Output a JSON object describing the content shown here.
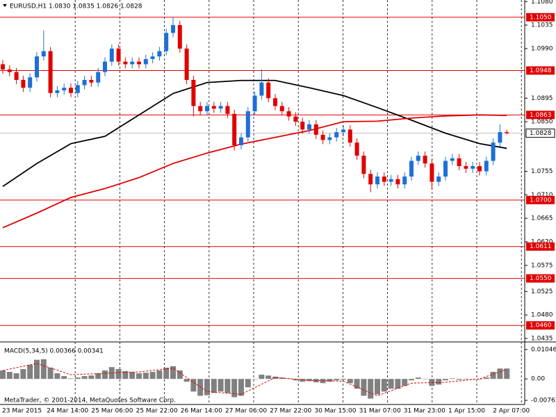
{
  "chart_data": {
    "type": "candlestick",
    "title": "EURUSD,H1  1.0830 1.0835 1.0826 1.0828",
    "bull_color": "#1e6fd6",
    "bear_color": "#e00000",
    "candles": {
      "open": [
        1.096,
        1.095,
        1.0945,
        1.093,
        1.0915,
        1.0935,
        1.0975,
        1.0985,
        1.0905,
        1.091,
        1.0915,
        1.0905,
        1.092,
        1.093,
        1.0925,
        1.0945,
        1.0965,
        1.099,
        1.0965,
        1.096,
        1.0965,
        1.096,
        1.097,
        1.0975,
        1.0985,
        1.102,
        1.1035,
        1.099,
        1.093,
        1.088,
        1.087,
        1.088,
        1.0875,
        1.088,
        1.0865,
        1.0805,
        1.082,
        1.087,
        1.09,
        1.0925,
        1.0895,
        1.088,
        1.087,
        1.086,
        1.085,
        1.0835,
        1.0845,
        1.0825,
        1.0815,
        1.082,
        1.083,
        1.0835,
        1.081,
        1.0785,
        1.075,
        1.073,
        1.0745,
        1.0735,
        1.074,
        1.073,
        1.0745,
        1.0775,
        1.0785,
        1.077,
        1.0735,
        1.0745,
        1.0775,
        1.078,
        1.0765,
        1.076,
        1.0765,
        1.0755,
        1.0775,
        1.081,
        1.083
      ],
      "high": [
        1.0968,
        1.0958,
        1.0953,
        1.0938,
        1.0943,
        1.0983,
        1.1025,
        1.0993,
        1.0918,
        1.0923,
        1.0923,
        1.0928,
        1.0938,
        1.0938,
        1.0953,
        1.0973,
        1.0998,
        1.0998,
        1.0973,
        1.0973,
        1.0973,
        1.0978,
        1.0983,
        1.0993,
        1.1028,
        1.105,
        1.1043,
        1.0998,
        1.0938,
        1.0888,
        1.0888,
        1.0888,
        1.0888,
        1.0888,
        1.0873,
        1.0828,
        1.0878,
        1.0908,
        1.095,
        1.0933,
        1.0903,
        1.0888,
        1.0878,
        1.0868,
        1.0858,
        1.0853,
        1.0853,
        1.0833,
        1.0828,
        1.0838,
        1.0843,
        1.0843,
        1.0818,
        1.0793,
        1.0758,
        1.0753,
        1.0753,
        1.0748,
        1.0748,
        1.0753,
        1.0783,
        1.0793,
        1.0793,
        1.0778,
        1.0753,
        1.0783,
        1.0788,
        1.0788,
        1.0773,
        1.0773,
        1.0773,
        1.0783,
        1.0818,
        1.0845,
        1.0835
      ],
      "low": [
        1.0942,
        1.0937,
        1.0922,
        1.0907,
        1.0907,
        1.0927,
        1.0967,
        1.0897,
        1.0897,
        1.0902,
        1.0897,
        1.0897,
        1.0912,
        1.0917,
        1.0917,
        1.0937,
        1.0957,
        1.0957,
        1.0952,
        1.0952,
        1.0952,
        1.0952,
        1.0962,
        1.0967,
        1.0977,
        1.1012,
        1.0982,
        1.0922,
        1.086,
        1.0862,
        1.0862,
        1.0867,
        1.0867,
        1.0857,
        1.0795,
        1.0797,
        1.0812,
        1.0862,
        1.0892,
        1.0887,
        1.0872,
        1.0862,
        1.0852,
        1.0842,
        1.0827,
        1.0827,
        1.0817,
        1.0807,
        1.0807,
        1.0812,
        1.0822,
        1.0802,
        1.0777,
        1.0742,
        1.0715,
        1.0722,
        1.0727,
        1.0727,
        1.0722,
        1.0722,
        1.0737,
        1.0767,
        1.0762,
        1.072,
        1.0727,
        1.0737,
        1.0767,
        1.0757,
        1.0752,
        1.0752,
        1.0747,
        1.0747,
        1.0767,
        1.0802,
        1.0826
      ],
      "close": [
        1.095,
        1.0945,
        1.093,
        1.0915,
        1.0935,
        1.0975,
        1.0985,
        1.0905,
        1.091,
        1.0915,
        1.0905,
        1.092,
        1.093,
        1.0925,
        1.0945,
        1.0965,
        1.099,
        1.0965,
        1.096,
        1.0965,
        1.096,
        1.097,
        1.0975,
        1.0985,
        1.102,
        1.1035,
        1.099,
        1.093,
        1.088,
        1.087,
        1.088,
        1.0875,
        1.088,
        1.0865,
        1.0805,
        1.082,
        1.087,
        1.09,
        1.0925,
        1.0895,
        1.088,
        1.087,
        1.086,
        1.085,
        1.0835,
        1.0845,
        1.0825,
        1.0815,
        1.082,
        1.083,
        1.0835,
        1.081,
        1.0785,
        1.075,
        1.073,
        1.0745,
        1.0735,
        1.074,
        1.073,
        1.0745,
        1.0775,
        1.0785,
        1.077,
        1.0735,
        1.0745,
        1.0775,
        1.078,
        1.0765,
        1.076,
        1.0765,
        1.0755,
        1.0775,
        1.081,
        1.083,
        1.0828
      ]
    },
    "moving_averages": [
      {
        "color": "#000000",
        "x": [
          0,
          5,
          10,
          15,
          20,
          25,
          30,
          35,
          40,
          45,
          50,
          55,
          60,
          65,
          70,
          74
        ],
        "values": [
          1.0726,
          1.077,
          1.0808,
          1.0822,
          1.0863,
          1.0904,
          1.0925,
          1.0929,
          1.0929,
          1.0915,
          1.09,
          1.0877,
          1.0853,
          1.0828,
          1.0808,
          1.0799
        ]
      },
      {
        "color": "#e00000",
        "x": [
          0,
          5,
          10,
          15,
          20,
          25,
          30,
          35,
          40,
          45,
          50,
          55,
          60,
          65,
          70,
          74
        ],
        "values": [
          1.0647,
          1.0675,
          1.0705,
          1.0722,
          1.0743,
          1.077,
          1.079,
          1.0807,
          1.082,
          1.0833,
          1.085,
          1.0851,
          1.0857,
          1.0861,
          1.0863,
          1.0862
        ]
      }
    ],
    "levels": [
      {
        "value": 1.105,
        "label": "1.1050"
      },
      {
        "value": 1.0948,
        "label": "1.0948"
      },
      {
        "value": 1.0863,
        "label": "1.0863"
      },
      {
        "value": 1.07,
        "label": "1.0700"
      },
      {
        "value": 1.0611,
        "label": "1.0611"
      },
      {
        "value": 1.055,
        "label": "1.0550"
      },
      {
        "value": 1.046,
        "label": "1.0460"
      }
    ],
    "level_color": "#e00000",
    "current_price": {
      "value": 1.0828,
      "label": "1.0828"
    },
    "ylim": [
      1.0431,
      1.1083
    ],
    "yticks": [
      {
        "value": 1.108,
        "label": "1.1080"
      },
      {
        "value": 1.1035,
        "label": "1.1035"
      },
      {
        "value": 1.099,
        "label": "1.0990"
      },
      {
        "value": 1.0895,
        "label": "1.0895"
      },
      {
        "value": 1.085,
        "label": "1.0850"
      },
      {
        "value": 1.0755,
        "label": "1.0755"
      },
      {
        "value": 1.071,
        "label": "1.0710"
      },
      {
        "value": 1.0665,
        "label": "1.0665"
      },
      {
        "value": 1.062,
        "label": "1.0620"
      },
      {
        "value": 1.0575,
        "label": "1.0575"
      },
      {
        "value": 1.0525,
        "label": "1.0525"
      },
      {
        "value": 1.048,
        "label": "1.0480"
      },
      {
        "value": 1.0435,
        "label": "1.0435"
      }
    ],
    "time_labels": [
      "23 Mar 2015",
      "24 Mar 14:00",
      "25 Mar 06:00",
      "25 Mar 22:00",
      "26 Mar 14:00",
      "27 Mar 06:00",
      "27 Mar 22:00",
      "30 Mar 15:00",
      "31 Mar 07:00",
      "31 Mar 23:00",
      "1 Apr 15:00",
      "2 Apr 07:00"
    ],
    "macd": {
      "title": "MACD(5,34,5) 0.00366 0.00341",
      "color": "#808080",
      "signal_color": "#e00000",
      "histogram": [
        0.003,
        0.0025,
        0.002,
        0.0035,
        0.005,
        0.0068,
        0.007,
        0.004,
        0.002,
        0.001,
        0.0002,
        0.0005,
        0.001,
        0.0012,
        0.002,
        0.003,
        0.0042,
        0.0035,
        0.0028,
        0.0025,
        0.002,
        0.0022,
        0.0025,
        0.003,
        0.004,
        0.0045,
        0.003,
        -0.001,
        -0.0045,
        -0.006,
        -0.0058,
        -0.005,
        -0.0045,
        -0.005,
        -0.0065,
        -0.006,
        -0.003,
        0.0,
        0.0015,
        0.0012,
        0.0008,
        0.0005,
        0.0002,
        -0.0005,
        -0.001,
        -0.0008,
        -0.0012,
        -0.0015,
        -0.001,
        -0.0005,
        -0.0003,
        -0.0015,
        -0.0035,
        -0.006,
        -0.007,
        -0.0055,
        -0.0045,
        -0.0035,
        -0.0035,
        -0.0025,
        -0.0005,
        0.0005,
        0.0,
        -0.0025,
        -0.002,
        -0.0005,
        0.0002,
        -0.0003,
        -0.0002,
        0.0,
        -0.0002,
        0.0005,
        0.0025,
        0.0037,
        0.0037
      ],
      "signal_x": [
        0,
        5,
        10,
        15,
        20,
        25,
        30,
        35,
        40,
        45,
        50,
        55,
        60,
        65,
        70,
        74
      ],
      "signal": [
        0.003,
        0.0055,
        0.0015,
        0.002,
        0.0025,
        0.0038,
        -0.0045,
        -0.0055,
        0.0005,
        -0.0005,
        -0.0008,
        -0.006,
        -0.0015,
        -0.0012,
        0.0,
        0.0034
      ],
      "ylim": [
        -0.0091,
        0.0129
      ],
      "yticks": [
        0.01046,
        {
          "value": 0,
          "label": "0.00"
        },
        -0.00763
      ]
    },
    "footer": "MetaTrader, © 2001-2014, MetaQuotes Software Corp."
  }
}
